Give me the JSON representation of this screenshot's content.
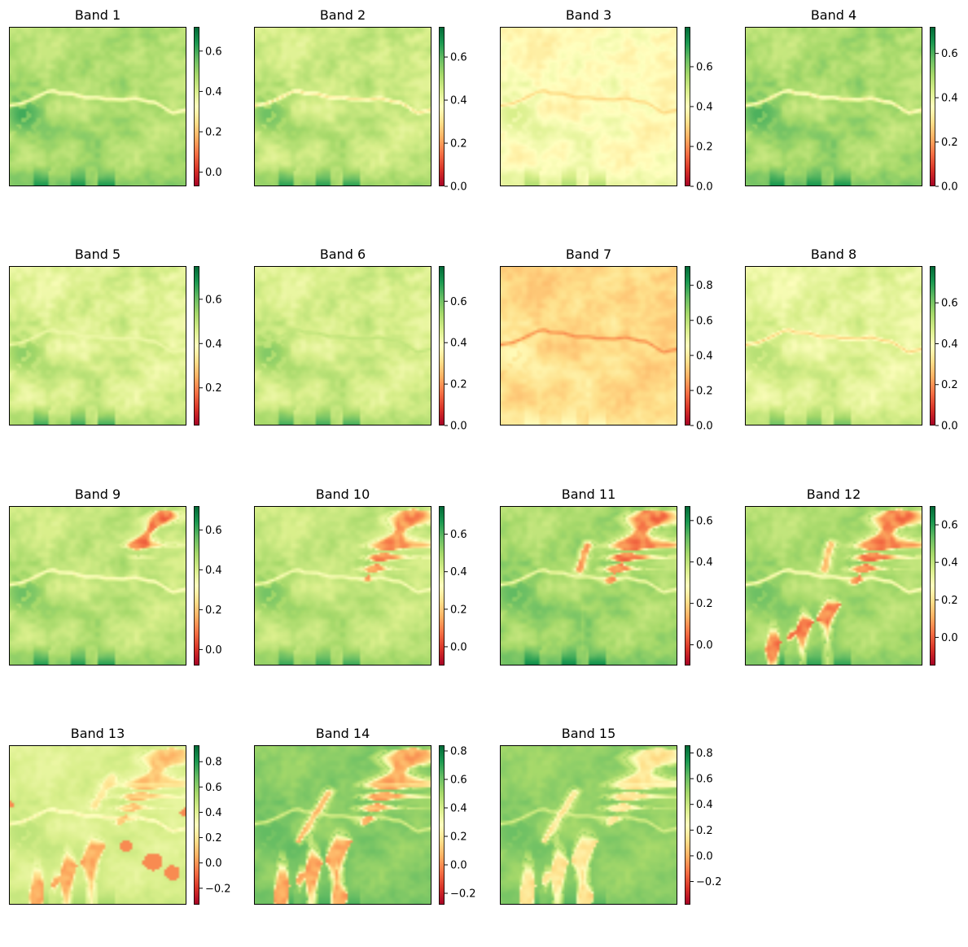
{
  "figure_type": "multi-panel raster colormap figure",
  "colormap": {
    "name": "RdYlGn",
    "stops": [
      "#a50026",
      "#d73027",
      "#f46d43",
      "#fdae61",
      "#fee08b",
      "#ffffbf",
      "#d9ef8b",
      "#a6d96a",
      "#66bd63",
      "#1a9850",
      "#006837"
    ]
  },
  "chart_data": [
    {
      "type": "heatmap",
      "title": "Band 1",
      "colorbar": {
        "range": [
          -0.07,
          0.72
        ],
        "ticks": [
          0.0,
          0.2,
          0.4,
          0.6
        ],
        "tick_labels": [
          "0.0",
          "0.2",
          "0.4",
          "0.6"
        ]
      },
      "field": {
        "base": 0.47,
        "river": 0.3,
        "southPatches": 0.65,
        "westPatches": 0.6,
        "ridges": [],
        "blobs": []
      }
    },
    {
      "type": "heatmap",
      "title": "Band 2",
      "colorbar": {
        "range": [
          0.0,
          0.74
        ],
        "ticks": [
          0.0,
          0.2,
          0.4,
          0.6
        ],
        "tick_labels": [
          "0.0",
          "0.2",
          "0.4",
          "0.6"
        ]
      },
      "field": {
        "base": 0.47,
        "river": 0.3,
        "southPatches": 0.66,
        "westPatches": 0.58,
        "ridges": [],
        "blobs": []
      }
    },
    {
      "type": "heatmap",
      "title": "Band 3",
      "colorbar": {
        "range": [
          0.0,
          0.8
        ],
        "ticks": [
          0.0,
          0.2,
          0.4,
          0.6
        ],
        "tick_labels": [
          "0.0",
          "0.2",
          "0.4",
          "0.6"
        ]
      },
      "field": {
        "base": 0.4,
        "river": 0.3,
        "southPatches": 0.55,
        "westPatches": 0.48,
        "ridges": [],
        "blobs": []
      }
    },
    {
      "type": "heatmap",
      "title": "Band 4",
      "colorbar": {
        "range": [
          0.0,
          0.72
        ],
        "ticks": [
          0.0,
          0.2,
          0.4,
          0.6
        ],
        "tick_labels": [
          "0.0",
          "0.2",
          "0.4",
          "0.6"
        ]
      },
      "field": {
        "base": 0.5,
        "river": 0.32,
        "southPatches": 0.66,
        "westPatches": 0.6,
        "ridges": [],
        "blobs": []
      }
    },
    {
      "type": "heatmap",
      "title": "Band 5",
      "colorbar": {
        "range": [
          0.03,
          0.75
        ],
        "ticks": [
          0.2,
          0.4,
          0.6
        ],
        "tick_labels": [
          "0.2",
          "0.4",
          "0.6"
        ]
      },
      "field": {
        "base": 0.46,
        "river": 0.42,
        "southPatches": 0.65,
        "westPatches": 0.56,
        "ridges": [],
        "blobs": []
      }
    },
    {
      "type": "heatmap",
      "title": "Band 6",
      "colorbar": {
        "range": [
          0.0,
          0.77
        ],
        "ticks": [
          0.0,
          0.2,
          0.4,
          0.6
        ],
        "tick_labels": [
          "0.0",
          "0.2",
          "0.4",
          "0.6"
        ]
      },
      "field": {
        "base": 0.47,
        "river": 0.5,
        "southPatches": 0.66,
        "westPatches": 0.58,
        "ridges": [],
        "blobs": []
      }
    },
    {
      "type": "heatmap",
      "title": "Band 7",
      "colorbar": {
        "range": [
          0.0,
          0.91
        ],
        "ticks": [
          0.0,
          0.2,
          0.4,
          0.6,
          0.8
        ],
        "tick_labels": [
          "0.0",
          "0.2",
          "0.4",
          "0.6",
          "0.8"
        ]
      },
      "field": {
        "base": 0.36,
        "river": 0.22,
        "southPatches": 0.45,
        "westPatches": 0.44,
        "ridges": [],
        "blobs": []
      }
    },
    {
      "type": "heatmap",
      "title": "Band 8",
      "colorbar": {
        "range": [
          0.0,
          0.78
        ],
        "ticks": [
          0.0,
          0.2,
          0.4,
          0.6
        ],
        "tick_labels": [
          "0.0",
          "0.2",
          "0.4",
          "0.6"
        ]
      },
      "field": {
        "base": 0.45,
        "river": 0.28,
        "southPatches": 0.62,
        "westPatches": 0.52,
        "ridges": [],
        "blobs": []
      }
    },
    {
      "type": "heatmap",
      "title": "Band 9",
      "colorbar": {
        "range": [
          -0.08,
          0.72
        ],
        "ticks": [
          0.0,
          0.2,
          0.4,
          0.6
        ],
        "tick_labels": [
          "0.0",
          "0.2",
          "0.4",
          "0.6"
        ]
      },
      "field": {
        "base": 0.44,
        "river": 0.3,
        "southPatches": 0.64,
        "westPatches": 0.55,
        "ridges": [
          {
            "x1": 0.88,
            "y1": 0.04,
            "x2": 0.72,
            "y2": 0.25,
            "w": 0.03,
            "v": 0.1
          }
        ],
        "blobs": []
      }
    },
    {
      "type": "heatmap",
      "title": "Band 10",
      "colorbar": {
        "range": [
          -0.1,
          0.75
        ],
        "ticks": [
          0.0,
          0.2,
          0.4,
          0.6
        ],
        "tick_labels": [
          "0.0",
          "0.2",
          "0.4",
          "0.6"
        ]
      },
      "field": {
        "base": 0.45,
        "river": 0.33,
        "southPatches": 0.64,
        "westPatches": 0.56,
        "ridges": [
          {
            "x1": 0.9,
            "y1": 0.03,
            "x2": 0.64,
            "y2": 0.45,
            "w": 0.05,
            "v": 0.12
          }
        ],
        "blobs": []
      }
    },
    {
      "type": "heatmap",
      "title": "Band 11",
      "colorbar": {
        "range": [
          -0.1,
          0.67
        ],
        "ticks": [
          0.0,
          0.2,
          0.4,
          0.6
        ],
        "tick_labels": [
          "0.0",
          "0.2",
          "0.4",
          "0.6"
        ]
      },
      "field": {
        "base": 0.44,
        "river": 0.3,
        "southPatches": 0.62,
        "westPatches": 0.52,
        "ridges": [
          {
            "x1": 0.86,
            "y1": 0.05,
            "x2": 0.62,
            "y2": 0.47,
            "w": 0.065,
            "v": 0.08
          },
          {
            "x1": 0.49,
            "y1": 0.25,
            "x2": 0.45,
            "y2": 0.4,
            "w": 0.03,
            "v": 0.12
          }
        ],
        "blobs": []
      }
    },
    {
      "type": "heatmap",
      "title": "Band 12",
      "colorbar": {
        "range": [
          -0.15,
          0.7
        ],
        "ticks": [
          0.0,
          0.2,
          0.4,
          0.6
        ],
        "tick_labels": [
          "0.0",
          "0.2",
          "0.4",
          "0.6"
        ]
      },
      "field": {
        "base": 0.44,
        "river": 0.25,
        "southPatches": 0.6,
        "westPatches": 0.52,
        "ridges": [
          {
            "x1": 0.87,
            "y1": 0.04,
            "x2": 0.62,
            "y2": 0.48,
            "w": 0.065,
            "v": 0.05
          },
          {
            "x1": 0.53,
            "y1": 0.62,
            "x2": 0.14,
            "y2": 0.9,
            "w": 0.045,
            "v": 0.05
          },
          {
            "x1": 0.48,
            "y1": 0.24,
            "x2": 0.45,
            "y2": 0.4,
            "w": 0.03,
            "v": 0.15
          }
        ],
        "blobs": []
      }
    },
    {
      "type": "heatmap",
      "title": "Band 13",
      "colorbar": {
        "range": [
          -0.33,
          0.93
        ],
        "ticks": [
          -0.2,
          0.0,
          0.2,
          0.4,
          0.6,
          0.8
        ],
        "tick_labels": [
          "−0.2",
          "0.0",
          "0.2",
          "0.4",
          "0.6",
          "0.8"
        ]
      },
      "field": {
        "base": 0.42,
        "river": 0.25,
        "southPatches": 0.55,
        "westPatches": 0.5,
        "ridges": [
          {
            "x1": 0.92,
            "y1": 0.02,
            "x2": 0.62,
            "y2": 0.5,
            "w": 0.06,
            "v": 0.1
          },
          {
            "x1": 0.7,
            "y1": 0.5,
            "x2": 0.15,
            "y2": 0.95,
            "w": 0.06,
            "v": 0.05
          },
          {
            "x1": 0.58,
            "y1": 0.2,
            "x2": 0.48,
            "y2": 0.38,
            "w": 0.03,
            "v": 0.2
          }
        ],
        "blobs": [
          {
            "x": 0.81,
            "y": 0.73,
            "r": 0.055,
            "v": -0.02
          },
          {
            "x": 0.92,
            "y": 0.8,
            "r": 0.045,
            "v": -0.02
          },
          {
            "x": 0.66,
            "y": 0.63,
            "r": 0.035,
            "v": -0.02
          },
          {
            "x": 0.99,
            "y": 0.42,
            "r": 0.025,
            "v": -0.02
          },
          {
            "x": 0.01,
            "y": 0.37,
            "r": 0.018,
            "v": -0.02
          }
        ]
      }
    },
    {
      "type": "heatmap",
      "title": "Band 14",
      "colorbar": {
        "range": [
          -0.28,
          0.84
        ],
        "ticks": [
          -0.2,
          0.0,
          0.2,
          0.4,
          0.6,
          0.8
        ],
        "tick_labels": [
          "−0.2",
          "0.0",
          "0.2",
          "0.4",
          "0.6",
          "0.8"
        ]
      },
      "field": {
        "base": 0.56,
        "river": 0.38,
        "southPatches": 0.66,
        "westPatches": 0.62,
        "ridges": [
          {
            "x1": 0.9,
            "y1": 0.02,
            "x2": 0.62,
            "y2": 0.5,
            "w": 0.07,
            "v": 0.05
          },
          {
            "x1": 0.62,
            "y1": 0.55,
            "x2": 0.12,
            "y2": 0.95,
            "w": 0.07,
            "v": 0.05
          },
          {
            "x1": 0.8,
            "y1": 0.55,
            "x2": 0.5,
            "y2": 0.98,
            "w": 0.04,
            "v": 0.05
          },
          {
            "x1": 0.42,
            "y1": 0.3,
            "x2": 0.25,
            "y2": 0.6,
            "w": 0.03,
            "v": 0.1
          }
        ],
        "blobs": []
      }
    },
    {
      "type": "heatmap",
      "title": "Band 15",
      "colorbar": {
        "range": [
          -0.38,
          0.86
        ],
        "ticks": [
          -0.2,
          0.0,
          0.2,
          0.4,
          0.6,
          0.8
        ],
        "tick_labels": [
          "−0.2",
          "0.0",
          "0.2",
          "0.4",
          "0.6",
          "0.8"
        ]
      },
      "field": {
        "base": 0.53,
        "river": 0.36,
        "southPatches": 0.64,
        "westPatches": 0.6,
        "ridges": [
          {
            "x1": 0.9,
            "y1": 0.02,
            "x2": 0.62,
            "y2": 0.5,
            "w": 0.07,
            "v": 0.14
          },
          {
            "x1": 0.62,
            "y1": 0.55,
            "x2": 0.12,
            "y2": 0.95,
            "w": 0.07,
            "v": 0.14
          },
          {
            "x1": 0.8,
            "y1": 0.55,
            "x2": 0.5,
            "y2": 0.98,
            "w": 0.04,
            "v": 0.12
          },
          {
            "x1": 0.42,
            "y1": 0.3,
            "x2": 0.25,
            "y2": 0.6,
            "w": 0.03,
            "v": 0.15
          }
        ],
        "blobs": []
      }
    }
  ]
}
